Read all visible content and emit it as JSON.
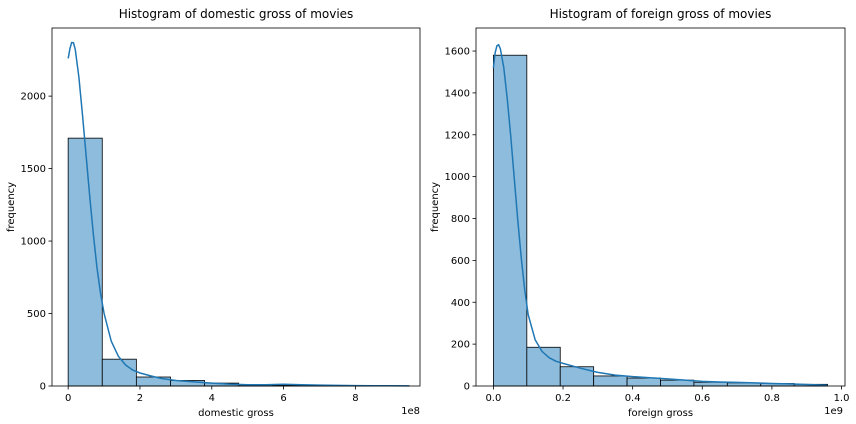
{
  "chart_data": [
    {
      "type": "bar",
      "subtype": "histogram-with-kde",
      "title": "Histogram of domestic gross of movies",
      "xlabel": "domestic gross",
      "ylabel": "frequency",
      "x_offset_label": "1e8",
      "xlim": [
        -0.45,
        9.8
      ],
      "ylim": [
        0,
        2470
      ],
      "xticks": [
        0,
        2,
        4,
        6,
        8
      ],
      "yticks": [
        0,
        500,
        1000,
        1500,
        2000
      ],
      "bin_edges": [
        0,
        0.95,
        1.9,
        2.85,
        3.8,
        4.75,
        5.7,
        6.65,
        7.6,
        8.55,
        9.5
      ],
      "values": [
        1710,
        185,
        62,
        38,
        20,
        8,
        6,
        3,
        2,
        1
      ],
      "kde": {
        "x": [
          0,
          0.05,
          0.1,
          0.15,
          0.2,
          0.3,
          0.4,
          0.5,
          0.6,
          0.7,
          0.8,
          0.9,
          1.0,
          1.2,
          1.4,
          1.6,
          1.8,
          2.0,
          2.3,
          2.6,
          3.0,
          3.5,
          4.0,
          4.5,
          5.0,
          5.5,
          6.0,
          6.5,
          7.0,
          7.5,
          8.0,
          8.5,
          9.0,
          9.5
        ],
        "y": [
          2260,
          2330,
          2370,
          2368,
          2320,
          2130,
          1870,
          1590,
          1310,
          1050,
          820,
          640,
          500,
          310,
          205,
          145,
          110,
          90,
          70,
          52,
          38,
          28,
          20,
          13,
          9,
          8,
          12,
          9,
          6,
          4,
          3,
          2,
          2,
          1
        ]
      },
      "bar_color": "#8dbcdc",
      "line_color": "#1f77b4"
    },
    {
      "type": "bar",
      "subtype": "histogram-with-kde",
      "title": "Histogram of foreign gross of movies",
      "xlabel": "foreign gross",
      "ylabel": "frequency",
      "x_offset_label": "1e9",
      "xlim": [
        -0.05,
        1.01
      ],
      "ylim": [
        0,
        1710
      ],
      "xticks": [
        0.0,
        0.2,
        0.4,
        0.6,
        0.8,
        1.0
      ],
      "xtick_labels": [
        "0.0",
        "0.2",
        "0.4",
        "0.6",
        "0.8",
        "1.0"
      ],
      "yticks": [
        0,
        200,
        400,
        600,
        800,
        1000,
        1200,
        1400,
        1600
      ],
      "bin_edges": [
        0,
        0.096,
        0.192,
        0.288,
        0.384,
        0.48,
        0.576,
        0.672,
        0.768,
        0.864,
        0.96
      ],
      "values": [
        1580,
        185,
        92,
        48,
        38,
        28,
        18,
        15,
        12,
        8
      ],
      "kde": {
        "x": [
          0,
          0.005,
          0.01,
          0.015,
          0.02,
          0.03,
          0.04,
          0.05,
          0.06,
          0.07,
          0.08,
          0.09,
          0.1,
          0.12,
          0.14,
          0.16,
          0.18,
          0.2,
          0.25,
          0.3,
          0.35,
          0.4,
          0.45,
          0.5,
          0.55,
          0.6,
          0.65,
          0.7,
          0.75,
          0.8,
          0.85,
          0.9,
          0.96
        ],
        "y": [
          1520,
          1590,
          1625,
          1630,
          1610,
          1520,
          1370,
          1190,
          990,
          790,
          610,
          460,
          340,
          220,
          165,
          135,
          118,
          108,
          85,
          65,
          52,
          45,
          39,
          34,
          28,
          22,
          19,
          17,
          15,
          12,
          10,
          7,
          4
        ]
      },
      "bar_color": "#8dbcdc",
      "line_color": "#1f77b4"
    }
  ]
}
